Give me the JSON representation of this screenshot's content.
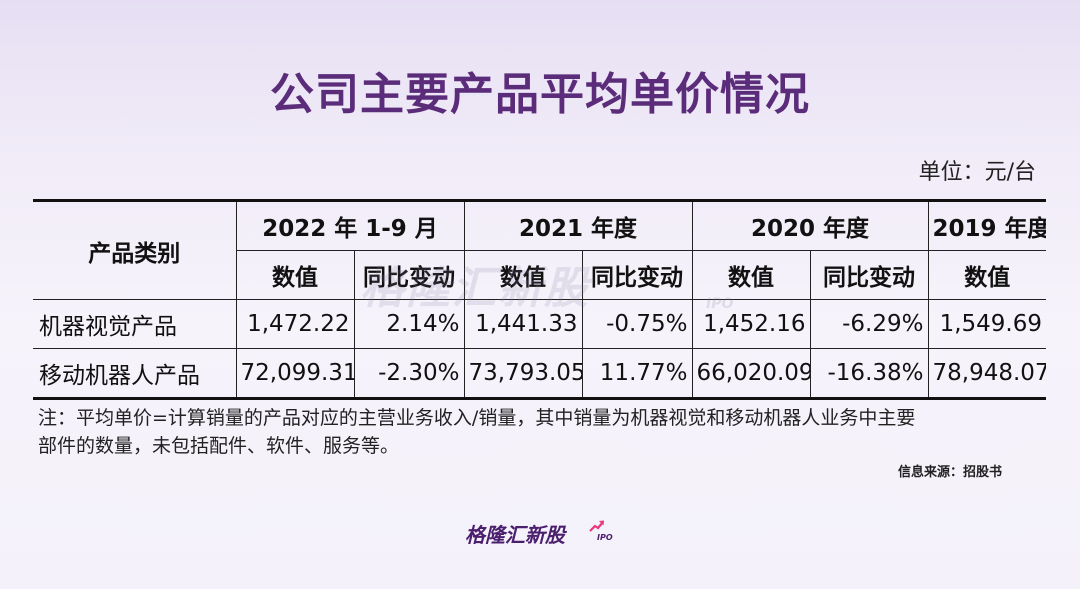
{
  "title": "公司主要产品平均单价情况",
  "unit": "单位：元/台",
  "table": {
    "category_header": "产品类别",
    "periods": [
      "2022 年 1-9 月",
      "2021 年度",
      "2020 年度",
      "2019 年度"
    ],
    "value_label": "数值",
    "change_label": "同比变动",
    "rows": [
      {
        "category": "机器视觉产品",
        "cells": [
          "1,472.22",
          "2.14%",
          "1,441.33",
          "-0.75%",
          "1,452.16",
          "-6.29%",
          "1,549.69"
        ]
      },
      {
        "category": "移动机器人产品",
        "cells": [
          "72,099.31",
          "-2.30%",
          "73,793.05",
          "11.77%",
          "66,020.09",
          "-16.38%",
          "78,948.07"
        ]
      }
    ]
  },
  "note_line1": "注：平均单价=计算销量的产品对应的主营业务收入/销量，其中销量为机器视觉和移动机器人业务中主要",
  "note_line2": "部件的数量，未包括配件、软件、服务等。",
  "source": "信息来源：招股书",
  "watermark": "格隆汇新股",
  "watermark_ipo": "IPO",
  "logo_text": "格隆汇新股",
  "logo_ipo": "IPO",
  "colors": {
    "title": "#5b2c7a",
    "logo": "#4b1f6e",
    "accent_arrow": "#e8387a"
  }
}
